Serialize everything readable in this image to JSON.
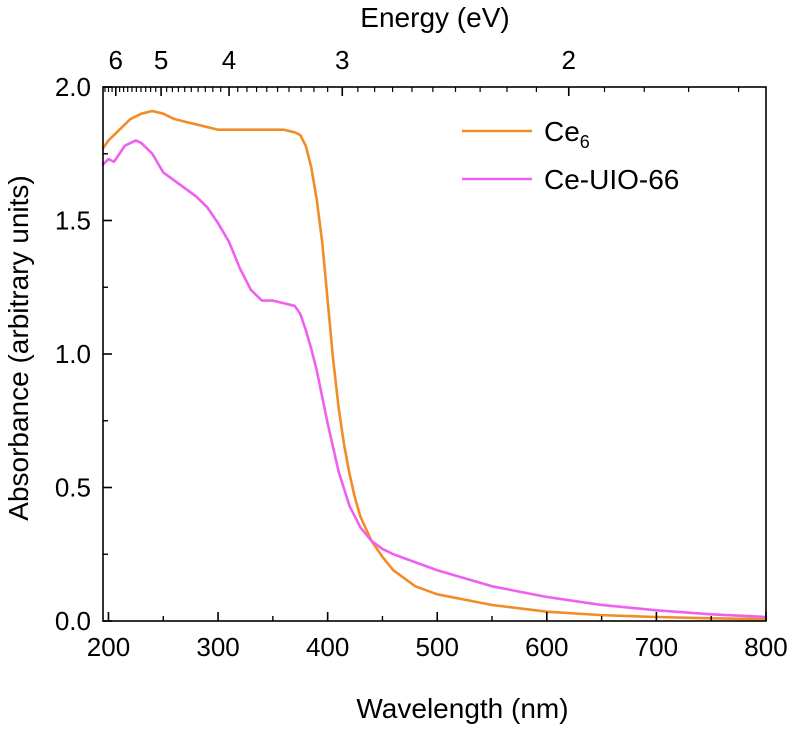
{
  "chart_data": {
    "type": "line",
    "xlabel": "Wavelength (nm)",
    "ylabel": "Absorbance (arbitrary units)",
    "top_axis_label": "Energy (eV)",
    "xlim": [
      195,
      800
    ],
    "ylim": [
      0.0,
      2.0
    ],
    "x_ticks": [
      200,
      300,
      400,
      500,
      600,
      700,
      800
    ],
    "x_tick_labels": [
      "200",
      "300",
      "400",
      "500",
      "600",
      "700",
      "800"
    ],
    "y_ticks": [
      0.0,
      0.5,
      1.0,
      1.5,
      2.0
    ],
    "y_tick_labels": [
      "0.0",
      "0.5",
      "1.0",
      "1.5",
      "2.0"
    ],
    "top_ticks_eV": [
      6,
      5,
      4,
      3,
      2
    ],
    "top_tick_labels": [
      "6",
      "5",
      "4",
      "3",
      "2"
    ],
    "legend_position": "top-right",
    "series": [
      {
        "name": "Ce6",
        "legend_base": "Ce",
        "legend_sub": "6",
        "color": "#f28c28",
        "x": [
          195,
          200,
          210,
          220,
          230,
          240,
          250,
          260,
          270,
          280,
          290,
          300,
          320,
          340,
          360,
          370,
          375,
          380,
          385,
          390,
          395,
          400,
          405,
          410,
          415,
          420,
          425,
          430,
          440,
          450,
          460,
          480,
          500,
          550,
          600,
          650,
          700,
          750,
          800
        ],
        "y": [
          1.77,
          1.8,
          1.84,
          1.88,
          1.9,
          1.91,
          1.9,
          1.88,
          1.87,
          1.86,
          1.85,
          1.84,
          1.84,
          1.84,
          1.84,
          1.83,
          1.82,
          1.78,
          1.7,
          1.58,
          1.42,
          1.2,
          0.98,
          0.8,
          0.66,
          0.55,
          0.46,
          0.39,
          0.3,
          0.24,
          0.19,
          0.13,
          0.1,
          0.06,
          0.035,
          0.022,
          0.015,
          0.01,
          0.007
        ]
      },
      {
        "name": "Ce-UIO-66",
        "legend_base": "Ce-UIO-66",
        "legend_sub": "",
        "color": "#f060f0",
        "x": [
          195,
          200,
          205,
          210,
          215,
          220,
          225,
          230,
          240,
          250,
          260,
          270,
          280,
          290,
          300,
          310,
          320,
          330,
          340,
          350,
          360,
          370,
          375,
          380,
          385,
          390,
          395,
          400,
          405,
          410,
          420,
          430,
          440,
          450,
          460,
          480,
          500,
          550,
          600,
          650,
          700,
          750,
          800
        ],
        "y": [
          1.71,
          1.73,
          1.72,
          1.75,
          1.78,
          1.79,
          1.8,
          1.79,
          1.75,
          1.68,
          1.65,
          1.62,
          1.59,
          1.55,
          1.49,
          1.42,
          1.32,
          1.24,
          1.2,
          1.2,
          1.19,
          1.18,
          1.15,
          1.09,
          1.02,
          0.94,
          0.84,
          0.74,
          0.65,
          0.56,
          0.43,
          0.35,
          0.3,
          0.27,
          0.25,
          0.22,
          0.19,
          0.13,
          0.09,
          0.06,
          0.04,
          0.025,
          0.015
        ]
      }
    ]
  }
}
